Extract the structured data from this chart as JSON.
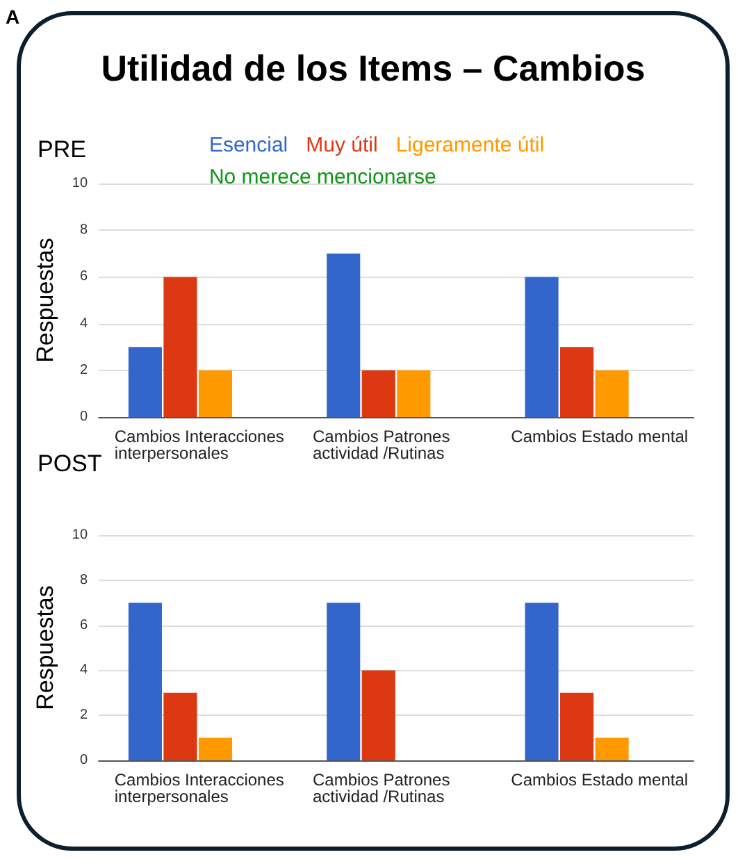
{
  "chart_data": [
    {
      "type": "bar",
      "title": "Utilidad de los Items – Cambios",
      "subtitle": "PRE",
      "annotations": [
        "A"
      ],
      "ylabel": "Respuestas",
      "categories": [
        "Cambios Interacciones interpersonales",
        "Cambios Patrones actividad /Rutinas",
        "Cambios Estado mental"
      ],
      "series": [
        {
          "name": "Esencial",
          "color": "#3366cc",
          "values": [
            3,
            7,
            6
          ]
        },
        {
          "name": "Muy útil",
          "color": "#dc3912",
          "values": [
            6,
            2,
            3
          ]
        },
        {
          "name": "Ligeramente útil",
          "color": "#ff9900",
          "values": [
            2,
            2,
            2
          ]
        },
        {
          "name": "No merece mencionarse",
          "color": "#109618",
          "values": [
            0,
            0,
            0
          ]
        }
      ],
      "ylim": [
        0,
        10
      ],
      "yticks": [
        0,
        2,
        4,
        6,
        8,
        10
      ],
      "grid": "y",
      "legend": "top"
    },
    {
      "type": "bar",
      "title": "POST",
      "ylabel": "Respuestas",
      "categories": [
        "Cambios Interacciones interpersonales",
        "Cambios Patrones actividad /Rutinas",
        "Cambios Estado mental"
      ],
      "series": [
        {
          "color": "#3366cc",
          "values": [
            7,
            7,
            7
          ]
        },
        {
          "color": "#dc3912",
          "values": [
            3,
            4,
            3
          ]
        },
        {
          "color": "#ff9900",
          "values": [
            1,
            0,
            1
          ]
        },
        {
          "color": "#109618",
          "values": [
            0,
            0,
            0
          ]
        }
      ],
      "ylim": [
        0,
        10
      ],
      "yticks": [
        0,
        2,
        4,
        6,
        8,
        10
      ],
      "grid": "y",
      "legend": false
    }
  ]
}
